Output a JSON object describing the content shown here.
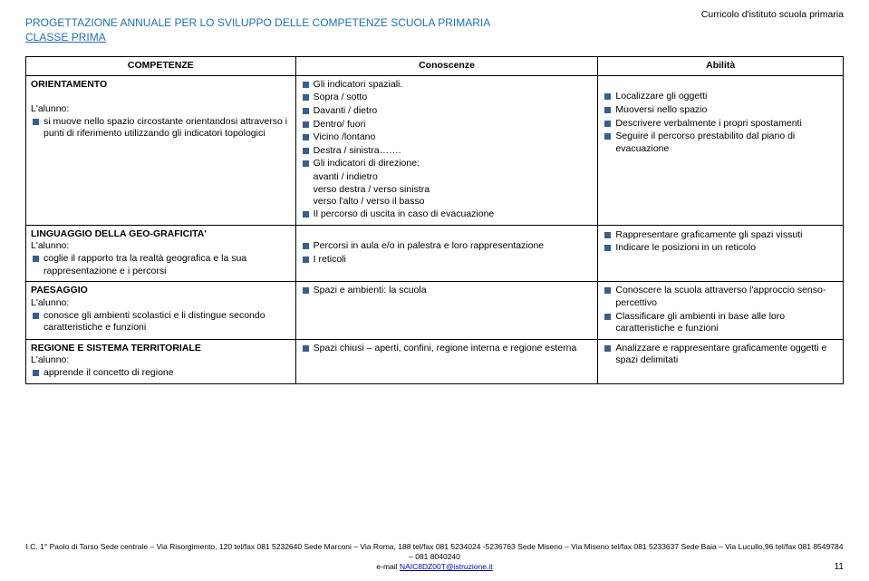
{
  "header_right": "Curricolo d'istituto scuola primaria",
  "title": "PROGETTAZIONE ANNUALE PER LO SVILUPPO DELLE COMPETENZE SCUOLA PRIMARIA",
  "subtitle": "CLASSE PRIMA",
  "columns": {
    "c1": "COMPETENZE",
    "c2": "Conoscenze",
    "c3": "Abilità"
  },
  "row1": {
    "left_section": "ORIENTAMENTO",
    "left_sub": "L'alunno:",
    "left_items": [
      "si muove nello spazio circostante orientandosi attraverso i punti di riferimento utilizzando gli indicatori topologici"
    ],
    "mid_items": [
      "Gli indicatori spaziali.",
      "Sopra / sotto",
      "Davanti / dietro",
      "Dentro/ fuori",
      "Vicino /lontano",
      "Destra / sinistra…….",
      "Gli indicatori di direzione:"
    ],
    "mid_plain": [
      "avanti / indietro",
      "verso destra / verso sinistra",
      "verso l'alto / verso il basso"
    ],
    "mid_items2": [
      "Il percorso di uscita in caso di evacuazione"
    ],
    "right_items": [
      "Localizzare gli oggetti",
      "Muoversi nello spazio",
      "Descrivere verbalmente i propri spostamenti",
      "Seguire il percorso prestabilito dal piano di evacuazione"
    ]
  },
  "row2": {
    "left_section": "LINGUAGGIO DELLA GEO-GRAFICITA'",
    "left_sub": "L'alunno:",
    "left_items": [
      "coglie il rapporto tra la realtà geografica e la sua rappresentazione e i percorsi"
    ],
    "mid_items": [
      "Percorsi in aula e/o in palestra e loro rappresentazione",
      "I reticoli"
    ],
    "right_items": [
      "",
      "Rappresentare graficamente gli spazi vissuti",
      "Indicare le posizioni in un reticolo"
    ]
  },
  "row3": {
    "left_section": "PAESAGGIO",
    "left_sub": "L'alunno:",
    "left_items": [
      "conosce gli ambienti scolastici e li distingue secondo caratteristiche e funzioni"
    ],
    "mid_items": [
      "Spazi e ambienti: la scuola"
    ],
    "right_items": [
      "Conoscere la scuola attraverso l'approccio senso-percettivo",
      "Classificare gli ambienti in base alle loro caratteristiche e funzioni"
    ]
  },
  "row4": {
    "left_section": "REGIONE E SISTEMA TERRITORIALE",
    "left_sub": "L'alunno:",
    "left_items": [
      "apprende il concetto di regione"
    ],
    "mid_items": [
      "Spazi chiusi – aperti, confini, regione interna e regione esterna"
    ],
    "right_items": [
      "Analizzare e rappresentare graficamente oggetti e spazi delimitati"
    ]
  },
  "footer_line1": "I.C. 1° Paolo di Tarso  Sede centrale – Via Risorgimento, 120 tel/fax 081 5232640 Sede Marconi – Via Roma, 188 tel/fax 081 5234024 -5236763 Sede Miseno – Via Miseno tel/fax 081 5233637 Sede Baia – Via Lucullo,96 tel/fax 081 8549784 – 081 8040240",
  "footer_line2_prefix": "e-mail ",
  "footer_email": "NAIC8DZ00T@istruzione.it",
  "page_number": "11"
}
